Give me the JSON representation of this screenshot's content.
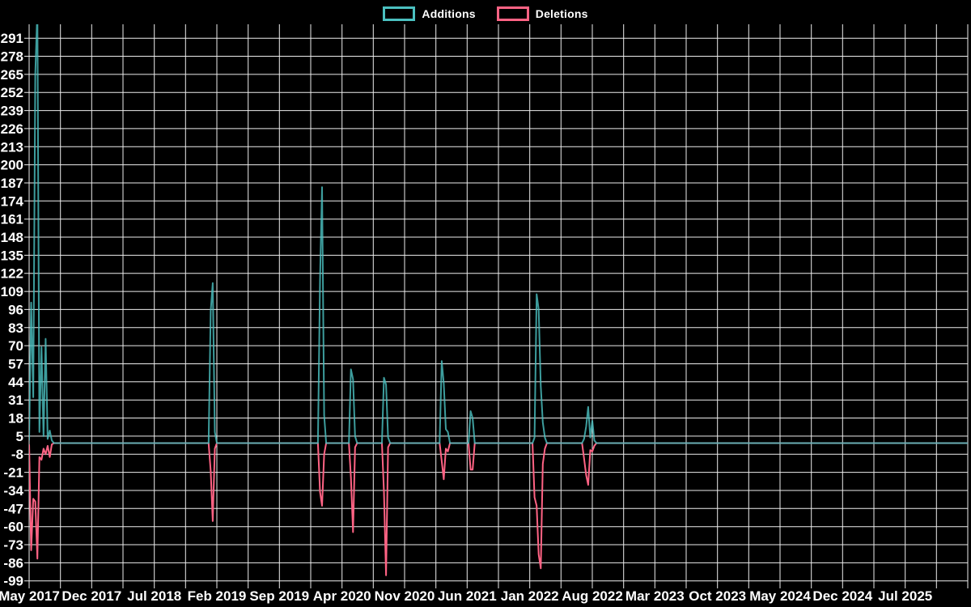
{
  "legend": {
    "items": [
      {
        "id": "additions",
        "label": "Additions",
        "color": "#4bc0c0"
      },
      {
        "id": "deletions",
        "label": "Deletions",
        "color": "#ff6384"
      }
    ]
  },
  "colors": {
    "background": "#000000",
    "grid": "#ededed",
    "tick_text": "#ffffff",
    "additions": "#4bc0c0",
    "deletions": "#ff6384"
  },
  "chart_data": {
    "type": "line",
    "title": "",
    "xlabel": "",
    "ylabel": "",
    "x_unit": "week",
    "weeks_total": 456,
    "x_tick_labels": [
      "May 2017",
      "Dec 2017",
      "Jul 2018",
      "Feb 2019",
      "Sep 2019",
      "Apr 2020",
      "Nov 2020",
      "Jun 2021",
      "Jan 2022",
      "Aug 2022",
      "Mar 2023",
      "Oct 2023",
      "May 2024",
      "Dec 2024",
      "Jul 2025"
    ],
    "x_gridline_count": 31,
    "x_labels_every_n_gridlines": 2,
    "y_ticks": [
      291,
      278,
      265,
      252,
      239,
      226,
      213,
      200,
      187,
      174,
      161,
      148,
      135,
      122,
      109,
      96,
      83,
      70,
      57,
      44,
      31,
      18,
      5,
      -8,
      -21,
      -34,
      -47,
      -60,
      -73,
      -86,
      -99
    ],
    "y_step": 13,
    "ylim_display": [
      -101.5,
      301
    ],
    "grid": true,
    "legend_position": "top-center",
    "series": [
      {
        "name": "Additions",
        "color": "#4bc0c0",
        "baseline": 0,
        "points_sparse": [
          [
            0,
            2
          ],
          [
            1,
            101
          ],
          [
            2,
            33
          ],
          [
            3,
            265
          ],
          [
            4,
            312
          ],
          [
            5,
            8
          ],
          [
            6,
            69
          ],
          [
            7,
            5
          ],
          [
            8,
            75
          ],
          [
            9,
            3
          ],
          [
            10,
            9
          ],
          [
            11,
            2
          ],
          [
            88,
            95
          ],
          [
            89,
            115
          ],
          [
            90,
            8
          ],
          [
            141,
            117
          ],
          [
            142,
            184
          ],
          [
            143,
            20
          ],
          [
            156,
            53
          ],
          [
            157,
            46
          ],
          [
            158,
            5
          ],
          [
            172,
            47
          ],
          [
            173,
            42
          ],
          [
            174,
            4
          ],
          [
            200,
            59
          ],
          [
            201,
            43
          ],
          [
            202,
            10
          ],
          [
            203,
            8
          ],
          [
            214,
            23
          ],
          [
            215,
            18
          ],
          [
            245,
            4
          ],
          [
            246,
            107
          ],
          [
            247,
            96
          ],
          [
            248,
            41
          ],
          [
            249,
            15
          ],
          [
            250,
            4
          ],
          [
            269,
            3
          ],
          [
            270,
            12
          ],
          [
            271,
            26
          ],
          [
            272,
            4
          ],
          [
            273,
            16
          ],
          [
            274,
            2
          ]
        ]
      },
      {
        "name": "Deletions",
        "color": "#ff6384",
        "baseline": 0,
        "points_sparse": [
          [
            0,
            -1
          ],
          [
            1,
            -77
          ],
          [
            2,
            -40
          ],
          [
            3,
            -42
          ],
          [
            4,
            -83
          ],
          [
            5,
            -10
          ],
          [
            6,
            -12
          ],
          [
            7,
            -4
          ],
          [
            8,
            -8
          ],
          [
            9,
            -2
          ],
          [
            10,
            -10
          ],
          [
            11,
            -1
          ],
          [
            88,
            -20
          ],
          [
            89,
            -56
          ],
          [
            90,
            -4
          ],
          [
            141,
            -35
          ],
          [
            142,
            -45
          ],
          [
            143,
            -8
          ],
          [
            156,
            -25
          ],
          [
            157,
            -64
          ],
          [
            158,
            -3
          ],
          [
            172,
            -35
          ],
          [
            173,
            -95
          ],
          [
            174,
            -3
          ],
          [
            200,
            -13
          ],
          [
            201,
            -26
          ],
          [
            202,
            -4
          ],
          [
            203,
            -6
          ],
          [
            214,
            -19
          ],
          [
            215,
            -19
          ],
          [
            245,
            -39
          ],
          [
            246,
            -45
          ],
          [
            247,
            -80
          ],
          [
            248,
            -90
          ],
          [
            249,
            -15
          ],
          [
            250,
            -4
          ],
          [
            269,
            -11
          ],
          [
            270,
            -23
          ],
          [
            271,
            -30
          ],
          [
            272,
            -5
          ],
          [
            273,
            -6
          ],
          [
            274,
            -2
          ]
        ]
      }
    ]
  }
}
